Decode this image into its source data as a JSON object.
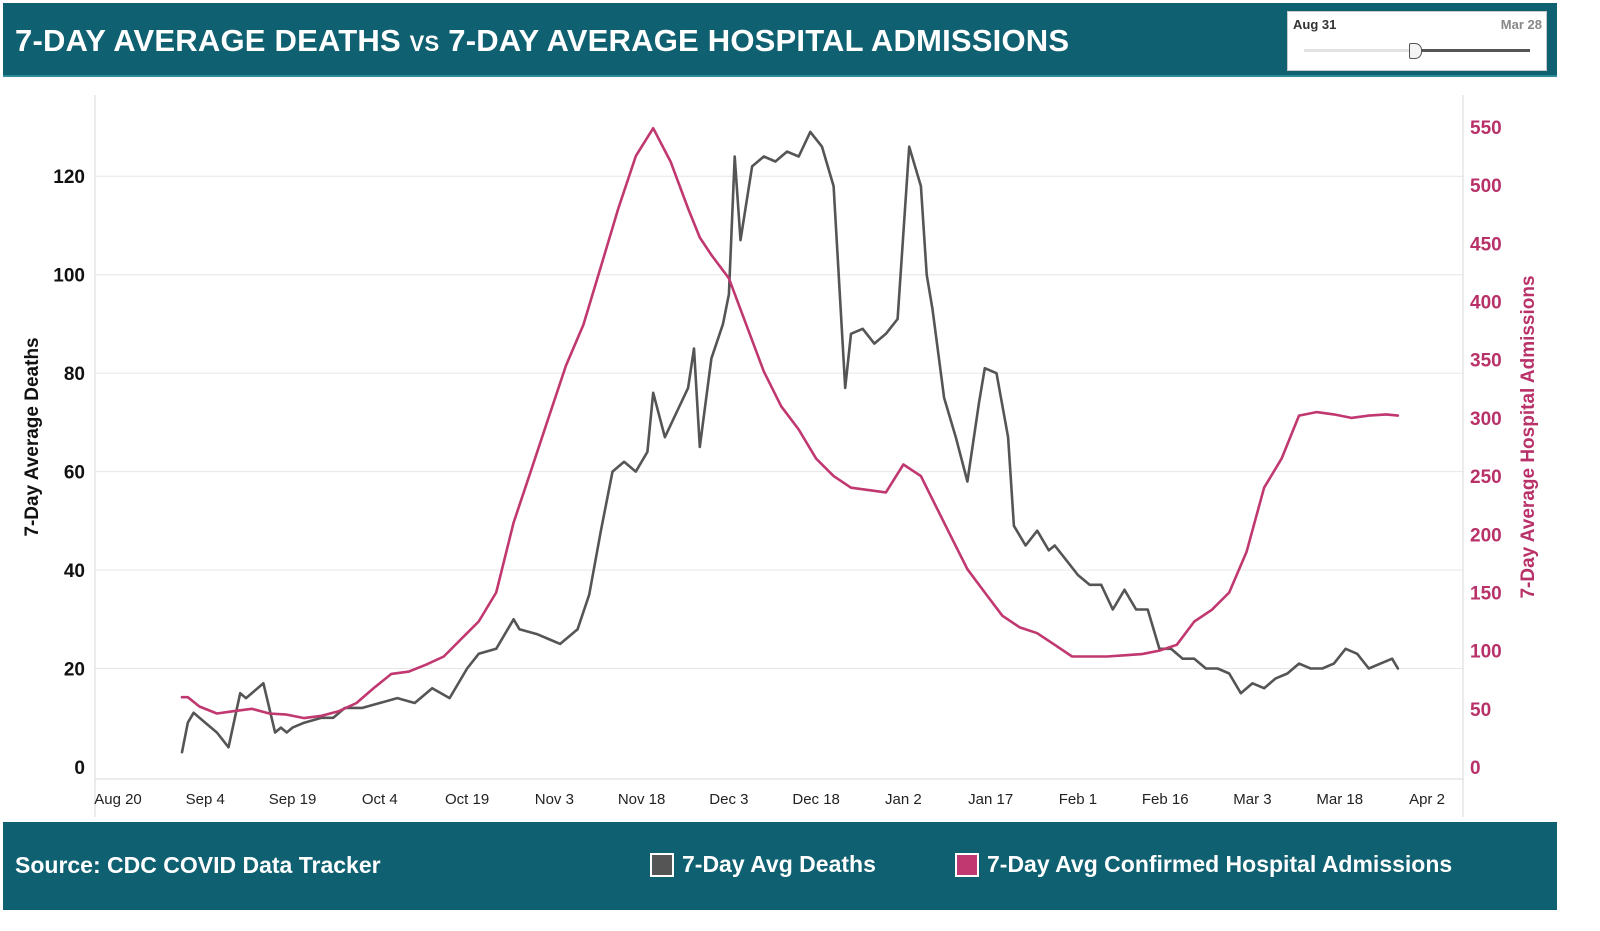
{
  "header": {
    "title_part1": "7-DAY AVERAGE DEATHS",
    "title_vs": "VS",
    "title_part2": "7-DAY AVERAGE HOSPITAL ADMISSIONS"
  },
  "slider": {
    "start_label": "Aug 31",
    "end_label": "Mar 28"
  },
  "footer": {
    "source": "Source: CDC COVID Data Tracker",
    "legend": [
      {
        "label": "7-Day Avg Deaths",
        "color": "#555555"
      },
      {
        "label": "7-Day Avg Confirmed Hospital Admissions",
        "color": "#c0386f"
      }
    ]
  },
  "chart_data": {
    "type": "line",
    "title": "7-DAY AVERAGE DEATHS VS 7-DAY AVERAGE HOSPITAL ADMISSIONS",
    "x_tick_labels": [
      "Aug 20",
      "Sep 4",
      "Sep 19",
      "Oct 4",
      "Oct 19",
      "Nov 3",
      "Nov 18",
      "Dec 3",
      "Dec 18",
      "Jan 2",
      "Jan 17",
      "Feb 1",
      "Feb 16",
      "Mar 3",
      "Mar 18",
      "Apr 2"
    ],
    "ylabel_left": "7-Day Average Deaths",
    "ylim_left": [
      0,
      130
    ],
    "yticks_left": [
      0,
      20,
      40,
      60,
      80,
      100,
      120
    ],
    "ylabel_right": "7-Day Average Hospital Admissions",
    "ylim_right": [
      0,
      550
    ],
    "yticks_right": [
      0,
      50,
      100,
      150,
      200,
      250,
      300,
      350,
      400,
      450,
      500,
      550
    ],
    "grid": true,
    "series": [
      {
        "name": "7-Day Avg Deaths",
        "axis": "left",
        "color": "#555555",
        "x": [
          "Aug 31",
          "Sep 1",
          "Sep 2",
          "Sep 4",
          "Sep 6",
          "Sep 8",
          "Sep 10",
          "Sep 11",
          "Sep 12",
          "Sep 14",
          "Sep 16",
          "Sep 17",
          "Sep 18",
          "Sep 19",
          "Sep 21",
          "Sep 24",
          "Sep 26",
          "Sep 28",
          "Oct 1",
          "Oct 4",
          "Oct 7",
          "Oct 10",
          "Oct 13",
          "Oct 16",
          "Oct 19",
          "Oct 21",
          "Oct 24",
          "Oct 27",
          "Oct 28",
          "Oct 31",
          "Nov 2",
          "Nov 4",
          "Nov 6",
          "Nov 7",
          "Nov 9",
          "Nov 11",
          "Nov 13",
          "Nov 15",
          "Nov 17",
          "Nov 19",
          "Nov 20",
          "Nov 22",
          "Nov 24",
          "Nov 26",
          "Nov 27",
          "Nov 28",
          "Nov 30",
          "Dec 2",
          "Dec 3",
          "Dec 4",
          "Dec 5",
          "Dec 7",
          "Dec 9",
          "Dec 11",
          "Dec 13",
          "Dec 15",
          "Dec 17",
          "Dec 19",
          "Dec 21",
          "Dec 23",
          "Dec 24",
          "Dec 26",
          "Dec 28",
          "Dec 30",
          "Jan 1",
          "Jan 3",
          "Jan 5",
          "Jan 6",
          "Jan 7",
          "Jan 9",
          "Jan 11",
          "Jan 13",
          "Jan 15",
          "Jan 16",
          "Jan 18",
          "Jan 20",
          "Jan 21",
          "Jan 23",
          "Jan 25",
          "Jan 27",
          "Jan 28",
          "Jan 30",
          "Feb 1",
          "Feb 3",
          "Feb 5",
          "Feb 7",
          "Feb 9",
          "Feb 11",
          "Feb 13",
          "Feb 15",
          "Feb 17",
          "Feb 19",
          "Feb 21",
          "Feb 23",
          "Feb 25",
          "Feb 27",
          "Mar 1",
          "Mar 3",
          "Mar 5",
          "Mar 7",
          "Mar 9",
          "Mar 11",
          "Mar 13",
          "Mar 15",
          "Mar 17",
          "Mar 19",
          "Mar 21",
          "Mar 23",
          "Mar 25",
          "Mar 27",
          "Mar 28"
        ],
        "values": [
          3,
          9,
          11,
          9,
          7,
          4,
          15,
          14,
          15,
          17,
          7,
          8,
          7,
          8,
          9,
          10,
          10,
          12,
          12,
          13,
          14,
          13,
          16,
          14,
          20,
          23,
          24,
          30,
          28,
          27,
          26,
          25,
          27,
          28,
          35,
          48,
          60,
          62,
          60,
          64,
          76,
          67,
          72,
          77,
          85,
          65,
          83,
          90,
          96,
          124,
          107,
          122,
          124,
          123,
          125,
          124,
          129,
          126,
          118,
          77,
          88,
          89,
          86,
          88,
          91,
          126,
          118,
          100,
          93,
          75,
          67,
          58,
          74,
          81,
          80,
          67,
          49,
          45,
          48,
          44,
          45,
          42,
          39,
          37,
          37,
          32,
          36,
          32,
          32,
          24,
          24,
          22,
          22,
          20,
          20,
          19,
          15,
          17,
          16,
          18,
          19,
          21,
          20,
          20,
          21,
          24,
          23,
          20,
          21,
          22,
          20
        ]
      },
      {
        "name": "7-Day Avg Confirmed Hospital Admissions",
        "axis": "right",
        "color": "#c0386f",
        "x": [
          "Aug 31",
          "Sep 1",
          "Sep 3",
          "Sep 6",
          "Sep 9",
          "Sep 12",
          "Sep 15",
          "Sep 18",
          "Sep 21",
          "Sep 24",
          "Sep 27",
          "Sep 30",
          "Oct 3",
          "Oct 6",
          "Oct 9",
          "Oct 12",
          "Oct 15",
          "Oct 18",
          "Oct 21",
          "Oct 24",
          "Oct 27",
          "Oct 30",
          "Nov 2",
          "Nov 5",
          "Nov 8",
          "Nov 11",
          "Nov 14",
          "Nov 17",
          "Nov 20",
          "Nov 23",
          "Nov 26",
          "Nov 28",
          "Nov 30",
          "Dec 3",
          "Dec 6",
          "Dec 9",
          "Dec 12",
          "Dec 15",
          "Dec 18",
          "Dec 21",
          "Dec 24",
          "Dec 27",
          "Dec 30",
          "Jan 2",
          "Jan 5",
          "Jan 7",
          "Jan 10",
          "Jan 13",
          "Jan 16",
          "Jan 19",
          "Jan 22",
          "Jan 25",
          "Jan 28",
          "Jan 31",
          "Feb 3",
          "Feb 6",
          "Feb 9",
          "Feb 12",
          "Feb 15",
          "Feb 18",
          "Feb 21",
          "Feb 24",
          "Feb 27",
          "Mar 2",
          "Mar 5",
          "Mar 8",
          "Mar 11",
          "Mar 14",
          "Mar 17",
          "Mar 20",
          "Mar 23",
          "Mar 26",
          "Mar 28"
        ],
        "values": [
          60,
          60,
          52,
          46,
          48,
          50,
          46,
          45,
          42,
          44,
          48,
          55,
          68,
          80,
          82,
          88,
          95,
          110,
          125,
          150,
          210,
          255,
          300,
          345,
          380,
          430,
          480,
          525,
          549,
          520,
          480,
          455,
          440,
          420,
          380,
          340,
          310,
          290,
          265,
          250,
          240,
          238,
          236,
          260,
          250,
          230,
          200,
          170,
          150,
          130,
          120,
          115,
          105,
          95,
          95,
          95,
          96,
          97,
          100,
          105,
          125,
          135,
          150,
          185,
          240,
          265,
          302,
          305,
          303,
          300,
          302,
          303,
          302
        ]
      }
    ]
  }
}
